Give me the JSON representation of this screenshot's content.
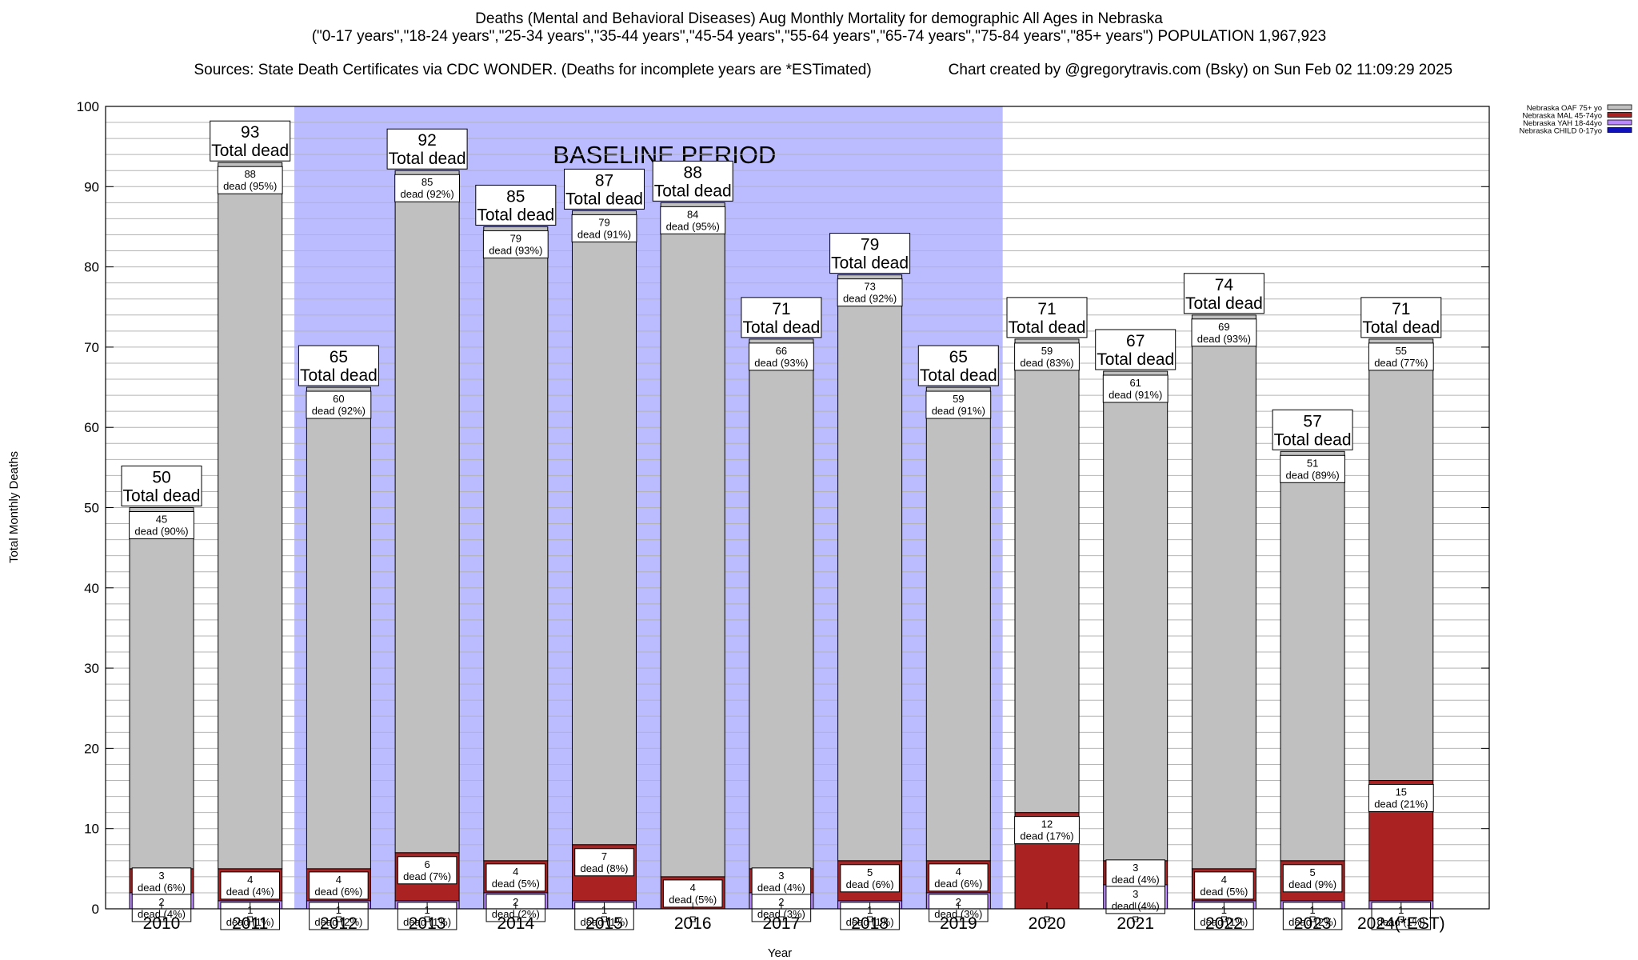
{
  "chart_data": {
    "type": "bar",
    "stacked": true,
    "title": "Deaths (Mental and Behavioral Diseases) Aug Monthly Mortality for demographic All Ages in Nebraska",
    "subtitle": "(\"0-17 years\",\"18-24 years\",\"25-34 years\",\"35-44 years\",\"45-54 years\",\"55-64 years\",\"65-74 years\",\"75-84 years\",\"85+ years\") POPULATION 1,967,923",
    "source": "Sources: State Death Certificates via CDC WONDER. (Deaths for incomplete years are *ESTimated)",
    "credit": "Chart created by @gregorytravis.com (Bsky) on Sun Feb 02 11:09:29 2025",
    "xlabel": "Year",
    "ylabel": "Total Monthly Deaths",
    "ylim": [
      0,
      100
    ],
    "yticks": [
      0,
      10,
      20,
      30,
      40,
      50,
      60,
      70,
      80,
      90,
      100
    ],
    "baseline_label": "BASELINE PERIOD",
    "baseline_range": [
      "2012",
      "2019"
    ],
    "total_suffix": "Total dead",
    "categories": [
      "2010",
      "2011",
      "2012",
      "2013",
      "2014",
      "2015",
      "2016",
      "2017",
      "2018",
      "2019",
      "2020",
      "2021",
      "2022",
      "2023",
      "2024(*EST)"
    ],
    "totals": [
      50,
      93,
      65,
      92,
      85,
      87,
      88,
      71,
      79,
      65,
      71,
      67,
      74,
      57,
      71
    ],
    "series": [
      {
        "name": "Nebraska CHILD 0-17yo",
        "color": "#1111bb",
        "values": [
          0,
          0,
          0,
          0,
          0,
          0,
          0,
          0,
          0,
          0,
          0,
          0,
          0,
          0,
          0
        ]
      },
      {
        "name": "Nebraska YAH 18-44yo",
        "color": "#bb88ff",
        "values": [
          2,
          1,
          1,
          1,
          2,
          1,
          0,
          2,
          1,
          2,
          0,
          3,
          1,
          1,
          1
        ],
        "labels": [
          "2\ndead (4%)",
          "1\ndead (1%)",
          "1\ndead (2%)",
          "1\ndead (1%)",
          "2\ndead (2%)",
          "1\ndead (1%)",
          "",
          "2\ndead (3%)",
          "1\ndead (1%)",
          "2\ndead (3%)",
          "",
          "3\ndead (4%)",
          "1\ndead (1%)",
          "1\ndead (2%)",
          "1\ndead (1%)"
        ]
      },
      {
        "name": "Nebraska MAL 45-74yo",
        "color": "#aa2222",
        "values": [
          3,
          4,
          4,
          6,
          4,
          7,
          4,
          3,
          5,
          4,
          12,
          3,
          4,
          5,
          15
        ],
        "labels": [
          "3\ndead (6%)",
          "4\ndead (4%)",
          "4\ndead (6%)",
          "6\ndead (7%)",
          "4\ndead (5%)",
          "7\ndead (8%)",
          "4\ndead (5%)",
          "3\ndead (4%)",
          "5\ndead (6%)",
          "4\ndead (6%)",
          "12\ndead (17%)",
          "3\ndead (4%)",
          "4\ndead (5%)",
          "5\ndead (9%)",
          "15\ndead (21%)"
        ]
      },
      {
        "name": "Nebraska OAF 75+ yo",
        "color": "#c0c0c0",
        "values": [
          45,
          88,
          60,
          85,
          79,
          79,
          84,
          66,
          73,
          59,
          59,
          61,
          69,
          51,
          55
        ],
        "labels": [
          "45\ndead (90%)",
          "88\ndead (95%)",
          "60\ndead (92%)",
          "85\ndead (92%)",
          "79\ndead (93%)",
          "79\ndead (91%)",
          "84\ndead (95%)",
          "66\ndead (93%)",
          "73\ndead (92%)",
          "59\ndead (91%)",
          "59\ndead (83%)",
          "61\ndead (91%)",
          "69\ndead (93%)",
          "51\ndead (89%)",
          "55\ndead (77%)"
        ]
      }
    ],
    "legend": {
      "placement": "top-right",
      "entries": [
        "Nebraska OAF 75+ yo",
        "Nebraska MAL 45-74yo",
        "Nebraska YAH 18-44yo",
        "Nebraska CHILD 0-17yo"
      ]
    },
    "colors": {
      "baseline_shade": "#bbbbff",
      "grid": "#b4b4b4"
    }
  }
}
